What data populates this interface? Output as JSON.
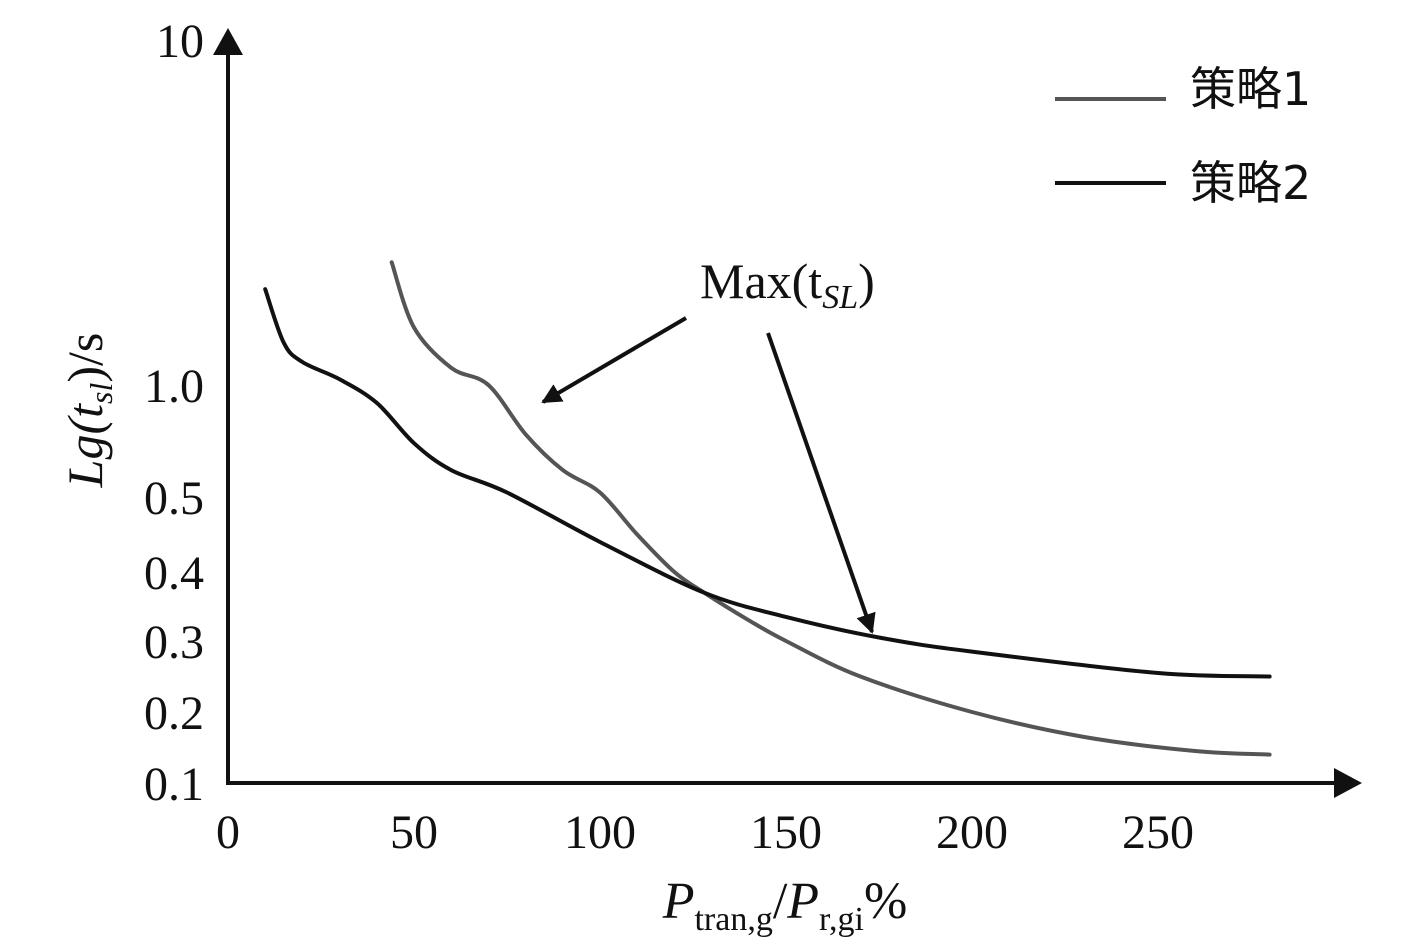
{
  "chart_data": {
    "type": "line",
    "x_ticks": [
      0,
      50,
      100,
      150,
      200,
      250
    ],
    "y_ticks": [
      {
        "value": 0.1,
        "label": "0.1"
      },
      {
        "value": 0.2,
        "label": "0.2"
      },
      {
        "value": 0.3,
        "label": "0.3"
      },
      {
        "value": 0.4,
        "label": "0.4"
      },
      {
        "value": 0.5,
        "label": "0.5"
      },
      {
        "value": 1.0,
        "label": "1.0"
      },
      {
        "value": 10,
        "label": "10"
      }
    ],
    "xlim": [
      0,
      300
    ],
    "ylabel": {
      "base": "Lg(t",
      "sub": "sl",
      "tail": ")/s"
    },
    "xlabel": {
      "p1": "P",
      "sub1": "tran,g",
      "slash": "/",
      "p2": "P",
      "sub2": "r,gi",
      "unit": "%"
    },
    "annotation": {
      "base": "Max(t",
      "sub": "SL",
      "tail": ")"
    },
    "series": [
      {
        "name": "策略1",
        "color": "#555555",
        "x": [
          44,
          50,
          60,
          70,
          80,
          90,
          100,
          110,
          120,
          128,
          140,
          150,
          170,
          200,
          230,
          260,
          280
        ],
        "y": [
          4.2,
          2.5,
          1.45,
          1.0,
          0.78,
          0.62,
          0.52,
          0.45,
          0.4,
          0.37,
          0.33,
          0.3,
          0.25,
          0.2,
          0.165,
          0.145,
          0.14
        ]
      },
      {
        "name": "策略2",
        "color": "#111111",
        "x": [
          10,
          15,
          20,
          30,
          40,
          50,
          60,
          75,
          100,
          128,
          150,
          175,
          200,
          250,
          280
        ],
        "y": [
          3.5,
          2.1,
          1.6,
          1.15,
          0.92,
          0.74,
          0.62,
          0.52,
          0.44,
          0.37,
          0.335,
          0.305,
          0.285,
          0.255,
          0.25
        ]
      }
    ]
  }
}
